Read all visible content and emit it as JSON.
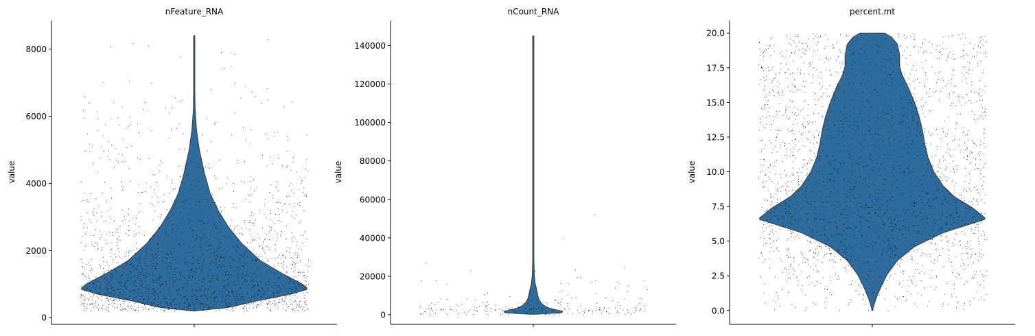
{
  "chart_data": [
    {
      "type": "violin",
      "title": "nFeature_RNA",
      "xlabel": "",
      "ylabel": "value",
      "y_ticks": [
        0,
        2000,
        4000,
        6000,
        8000
      ],
      "tick_labels": [
        "0",
        "2000",
        "4000",
        "6000",
        "8000"
      ],
      "ylim": [
        -200,
        8850
      ],
      "data_range": [
        200,
        8400
      ],
      "violin_color": "#2d6c9c",
      "violin_profile": [
        [
          200,
          0.0
        ],
        [
          300,
          0.3
        ],
        [
          500,
          0.55
        ],
        [
          700,
          0.85
        ],
        [
          850,
          1.0
        ],
        [
          1000,
          0.95
        ],
        [
          1300,
          0.78
        ],
        [
          1700,
          0.58
        ],
        [
          2200,
          0.42
        ],
        [
          2700,
          0.3
        ],
        [
          3200,
          0.21
        ],
        [
          3700,
          0.14
        ],
        [
          4300,
          0.09
        ],
        [
          5000,
          0.045
        ],
        [
          5600,
          0.02
        ],
        [
          6200,
          0.008
        ],
        [
          7000,
          0.004
        ],
        [
          8400,
          0.003
        ]
      ],
      "strip_density": [
        [
          200,
          1.0
        ],
        [
          1000,
          0.9
        ],
        [
          1500,
          0.6
        ],
        [
          2000,
          0.4
        ],
        [
          3000,
          0.22
        ],
        [
          4000,
          0.12
        ],
        [
          5000,
          0.07
        ],
        [
          6000,
          0.035
        ],
        [
          7000,
          0.015
        ],
        [
          8300,
          0.004
        ]
      ],
      "strip_points": 14000
    },
    {
      "type": "violin",
      "title": "nCount_RNA",
      "xlabel": "",
      "ylabel": "value",
      "y_ticks": [
        0,
        20000,
        40000,
        60000,
        80000,
        100000,
        120000,
        140000
      ],
      "tick_labels": [
        "0",
        "20000",
        "40000",
        "60000",
        "80000",
        "100000",
        "120000",
        "140000"
      ],
      "ylim": [
        -5000,
        153000
      ],
      "data_range": [
        200,
        145000
      ],
      "violin_color": "#2d6c9c",
      "violin_profile": [
        [
          200,
          0.0
        ],
        [
          1000,
          0.25
        ],
        [
          2000,
          0.26
        ],
        [
          3000,
          0.16
        ],
        [
          4500,
          0.1
        ],
        [
          6000,
          0.07
        ],
        [
          8000,
          0.05
        ],
        [
          10000,
          0.04
        ],
        [
          13000,
          0.03
        ],
        [
          16000,
          0.017
        ],
        [
          20000,
          0.01
        ],
        [
          25000,
          0.007
        ],
        [
          30000,
          0.005
        ],
        [
          40000,
          0.004
        ],
        [
          60000,
          0.004
        ],
        [
          100000,
          0.004
        ],
        [
          145000,
          0.004
        ]
      ],
      "strip_density": [
        [
          200,
          1.0
        ],
        [
          3000,
          0.85
        ],
        [
          6000,
          0.25
        ],
        [
          10000,
          0.09
        ],
        [
          15000,
          0.04
        ],
        [
          20000,
          0.015
        ],
        [
          30000,
          0.006
        ],
        [
          45000,
          0.003
        ],
        [
          60000,
          0.001
        ],
        [
          145000,
          0.0002
        ]
      ],
      "strip_points": 16000
    },
    {
      "type": "violin",
      "title": "percent.mt",
      "xlabel": "",
      "ylabel": "value",
      "y_ticks": [
        0.0,
        2.5,
        5.0,
        7.5,
        10.0,
        12.5,
        15.0,
        17.5,
        20.0
      ],
      "tick_labels": [
        "0.0",
        "2.5",
        "5.0",
        "7.5",
        "10.0",
        "12.5",
        "15.0",
        "17.5",
        "20.0"
      ],
      "ylim": [
        -1.0,
        20.9
      ],
      "data_range": [
        0.0,
        20.0
      ],
      "violin_color": "#2d6c9c",
      "violin_profile": [
        [
          0.0,
          0.0
        ],
        [
          0.8,
          0.03
        ],
        [
          1.6,
          0.07
        ],
        [
          2.6,
          0.13
        ],
        [
          3.6,
          0.22
        ],
        [
          4.6,
          0.37
        ],
        [
          5.6,
          0.62
        ],
        [
          6.6,
          1.0
        ],
        [
          7.4,
          0.88
        ],
        [
          8.2,
          0.72
        ],
        [
          9.0,
          0.62
        ],
        [
          10.0,
          0.54
        ],
        [
          11.0,
          0.49
        ],
        [
          12.0,
          0.46
        ],
        [
          13.0,
          0.44
        ],
        [
          14.0,
          0.41
        ],
        [
          15.0,
          0.37
        ],
        [
          16.0,
          0.32
        ],
        [
          17.0,
          0.26
        ],
        [
          17.6,
          0.24
        ],
        [
          18.4,
          0.24
        ],
        [
          19.2,
          0.22
        ],
        [
          19.7,
          0.17
        ],
        [
          20.0,
          0.11
        ]
      ],
      "strip_density": [
        [
          0.0,
          0.22
        ],
        [
          2.0,
          0.35
        ],
        [
          4.0,
          0.6
        ],
        [
          6.5,
          1.0
        ],
        [
          9.0,
          0.75
        ],
        [
          12.0,
          0.62
        ],
        [
          15.0,
          0.55
        ],
        [
          18.0,
          0.5
        ],
        [
          20.0,
          0.48
        ]
      ],
      "strip_points": 22000
    }
  ]
}
